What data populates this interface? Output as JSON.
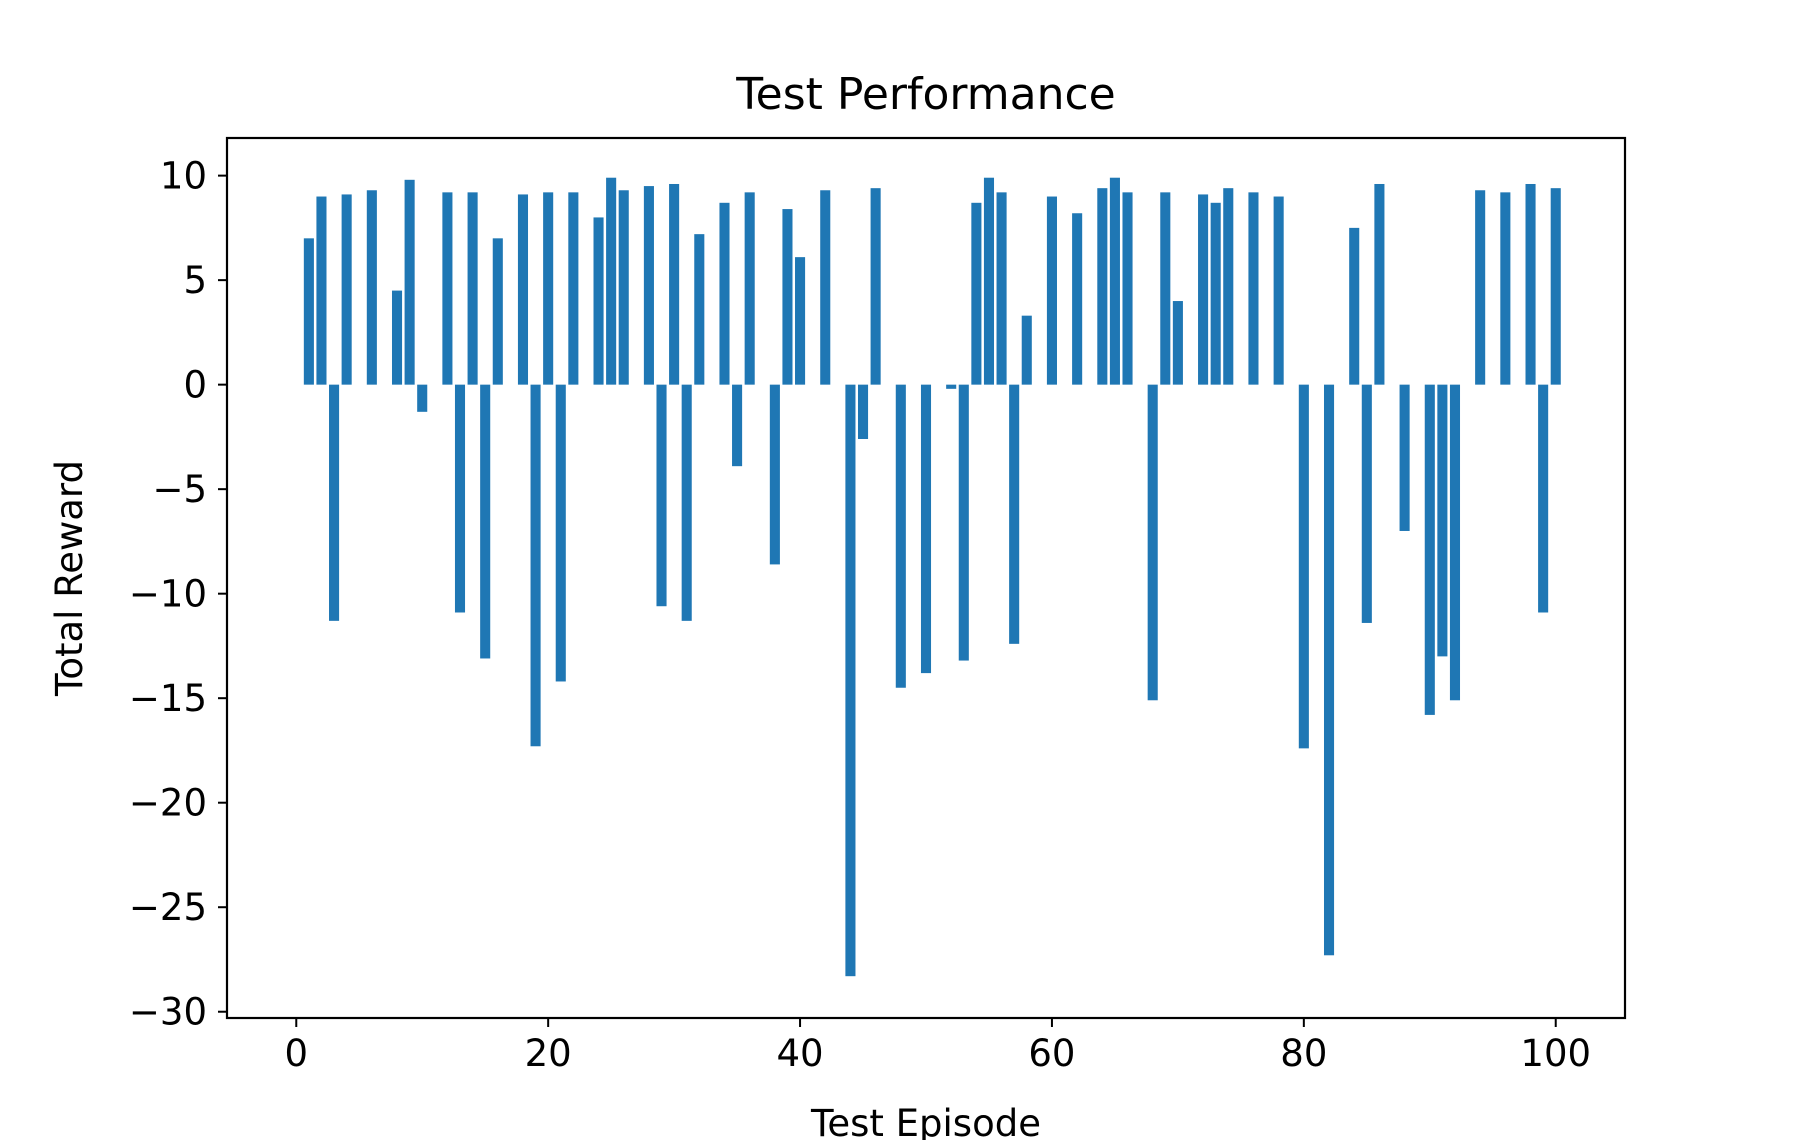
{
  "chart_data": {
    "type": "bar",
    "title": "Test Performance",
    "xlabel": "Test Episode",
    "ylabel": "Total Reward",
    "xlim": [
      -5.5,
      105.5
    ],
    "ylim": [
      -30.3,
      11.8
    ],
    "xticks": [
      0,
      20,
      40,
      60,
      80,
      100
    ],
    "xtick_labels": [
      "0",
      "20",
      "40",
      "60",
      "80",
      "100"
    ],
    "yticks": [
      10,
      5,
      0,
      -5,
      -10,
      -15,
      -20,
      -25,
      -30
    ],
    "ytick_labels": [
      "10",
      "5",
      "0",
      "−5",
      "−10",
      "−15",
      "−20",
      "−25",
      "−30"
    ],
    "grid": false,
    "legend": "none",
    "bar_color": "#1f77b4",
    "x": [
      1,
      2,
      3,
      4,
      6,
      8,
      9,
      10,
      12,
      13,
      14,
      15,
      16,
      18,
      19,
      20,
      21,
      22,
      24,
      25,
      26,
      28,
      29,
      30,
      31,
      32,
      34,
      35,
      36,
      38,
      39,
      40,
      42,
      44,
      45,
      46,
      48,
      50,
      52,
      53,
      54,
      55,
      56,
      57,
      58,
      60,
      62,
      64,
      65,
      66,
      68,
      69,
      70,
      72,
      73,
      74,
      76,
      78,
      80,
      82,
      84,
      85,
      86,
      88,
      90,
      91,
      92,
      94,
      96,
      98,
      99,
      100
    ],
    "values": [
      7.0,
      9.0,
      -11.3,
      9.1,
      9.3,
      4.5,
      9.8,
      -1.3,
      9.2,
      -10.9,
      9.2,
      -13.1,
      7.0,
      9.1,
      -17.3,
      9.2,
      -14.2,
      9.2,
      8.0,
      9.9,
      9.3,
      9.5,
      -10.6,
      9.6,
      -11.3,
      7.2,
      8.7,
      -3.9,
      9.2,
      -8.6,
      8.4,
      6.1,
      9.3,
      -28.3,
      -2.6,
      9.4,
      -14.5,
      -13.8,
      -0.2,
      -13.2,
      8.7,
      9.9,
      9.2,
      -12.4,
      3.3,
      9.0,
      8.2,
      9.4,
      9.9,
      9.2,
      -15.1,
      9.2,
      4.0,
      9.1,
      8.7,
      9.4,
      9.2,
      9.0,
      -17.4,
      -27.3,
      7.5,
      -11.4,
      9.6,
      -7.0,
      -15.8,
      -13.0,
      -15.1,
      9.3,
      9.2,
      9.6,
      -10.9,
      9.4
    ]
  }
}
